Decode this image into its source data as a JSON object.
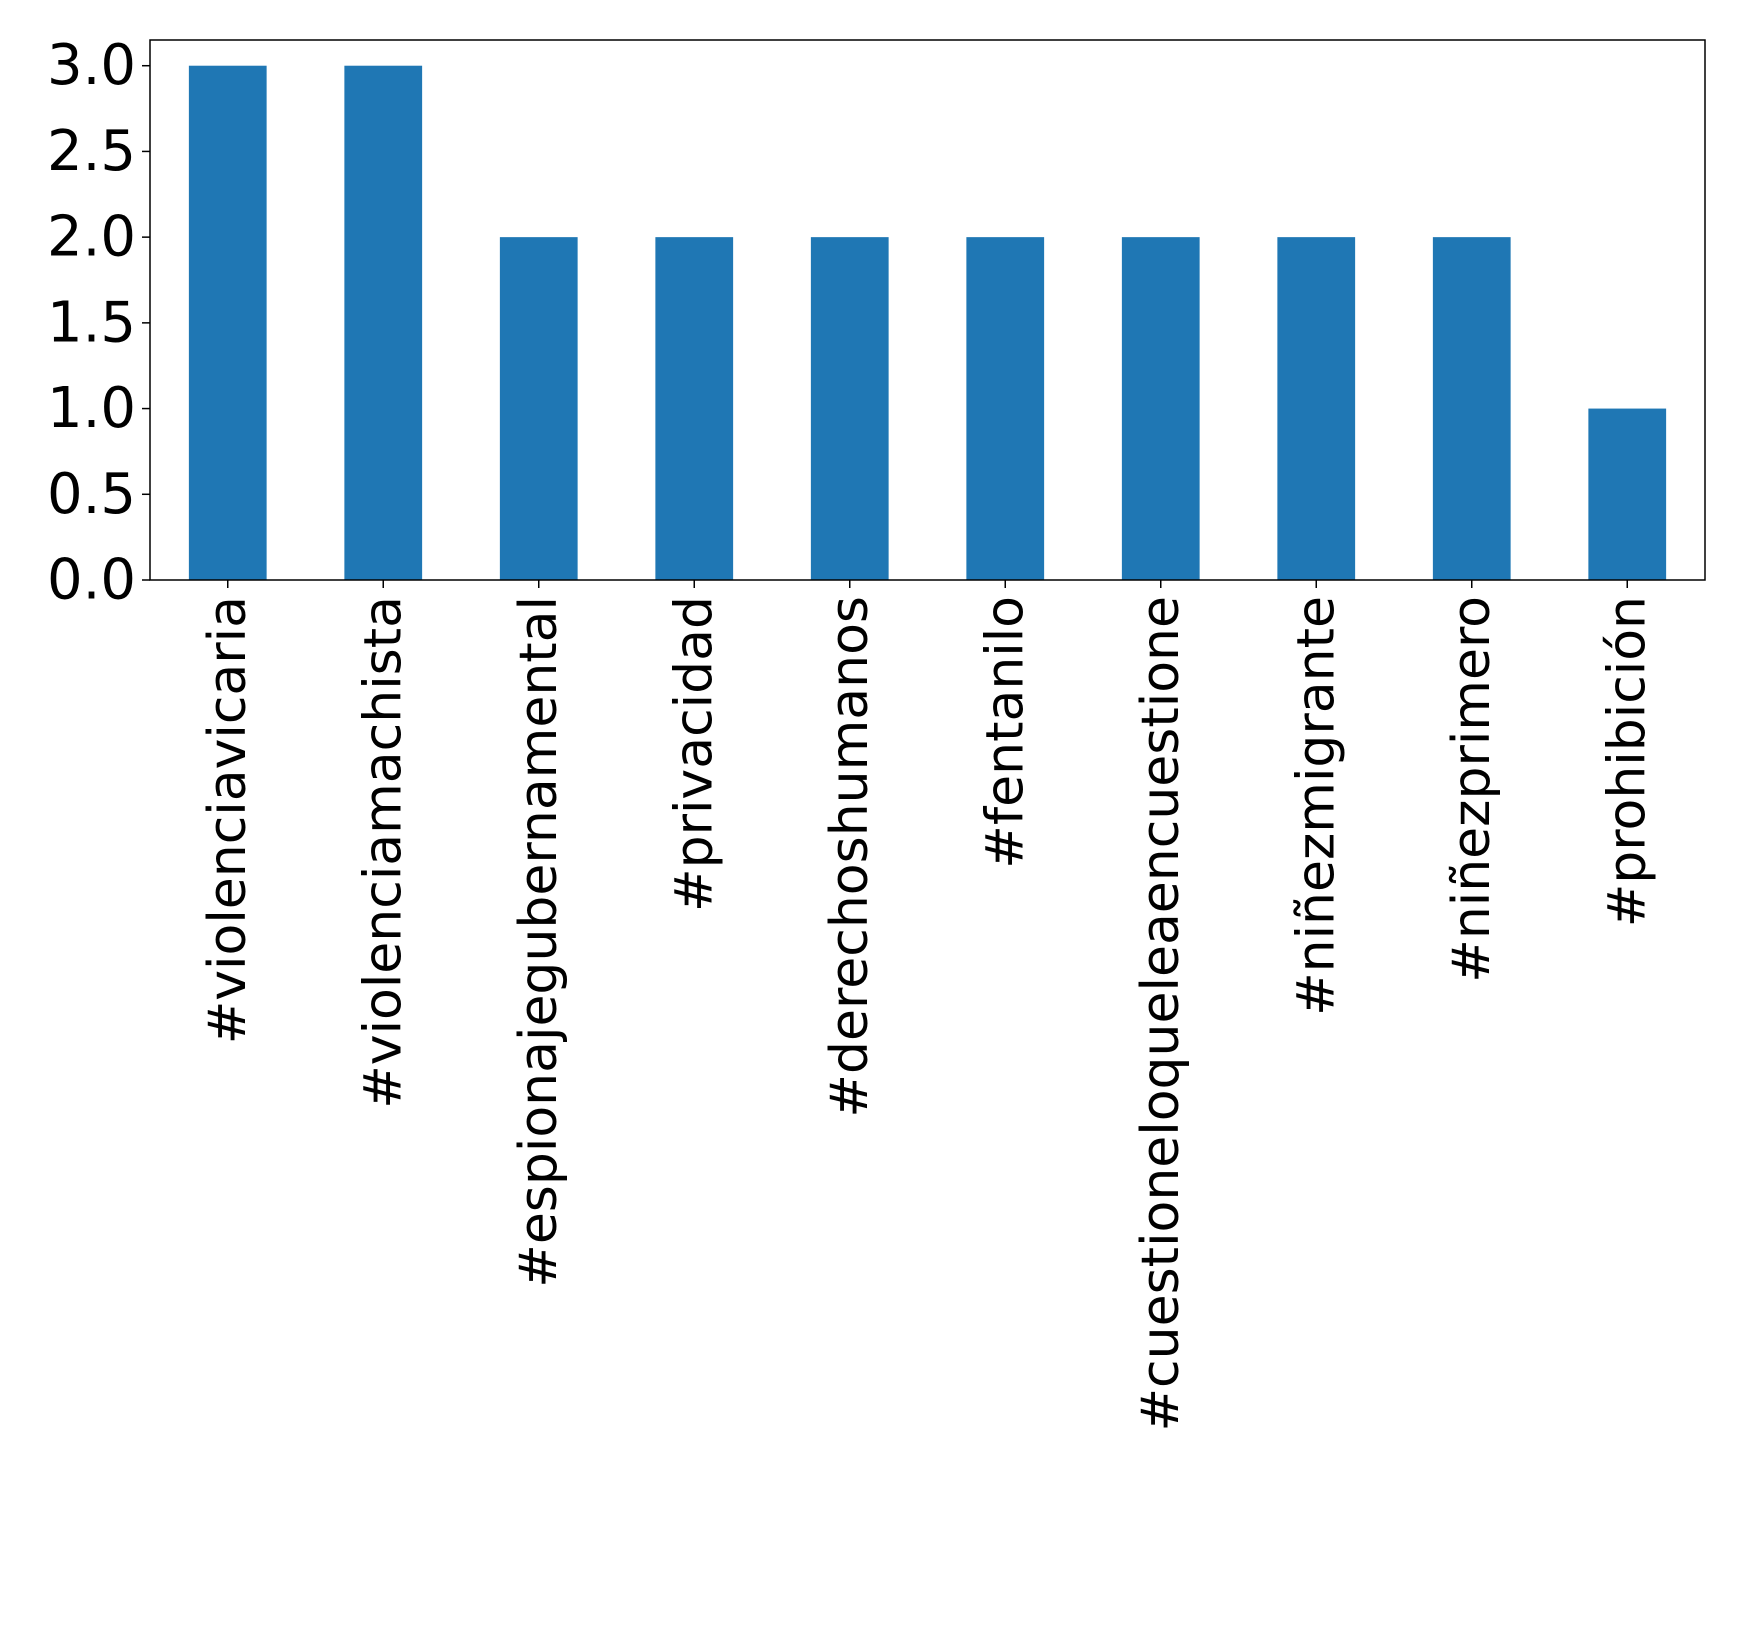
{
  "chart_data": {
    "type": "bar",
    "title": "",
    "xlabel": "",
    "ylabel": "",
    "categories": [
      "#violenciavicaria",
      "#violenciamachista",
      "#espionajegubernamental",
      "#privacidad",
      "#derechoshumanos",
      "#fentanilo",
      "#cuestioneloqueleaencuestione",
      "#niñezmigrante",
      "#niñezprimero",
      "#prohibición"
    ],
    "values": [
      3,
      3,
      2,
      2,
      2,
      2,
      2,
      2,
      2,
      1
    ],
    "ylim": [
      0,
      3.15
    ],
    "yticks": [
      "0.0",
      "0.5",
      "1.0",
      "1.5",
      "2.0",
      "2.5",
      "3.0"
    ],
    "ytick_values": [
      0,
      0.5,
      1.0,
      1.5,
      2.0,
      2.5,
      3.0
    ],
    "bar_color": "#1f77b4",
    "grid": false,
    "legend": "none"
  }
}
